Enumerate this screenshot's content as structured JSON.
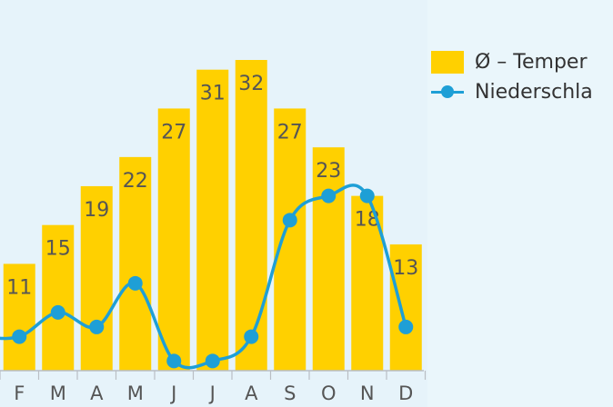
{
  "chart_data": {
    "type": "bar",
    "categories": [
      "F",
      "M",
      "A",
      "M",
      "J",
      "J",
      "A",
      "S",
      "O",
      "N",
      "D"
    ],
    "series": [
      {
        "name": "Ø – Temper",
        "type": "bar",
        "color": "#ffd000",
        "values": [
          11,
          15,
          19,
          22,
          27,
          31,
          32,
          27,
          23,
          18,
          13
        ]
      },
      {
        "name": "Niederschla",
        "type": "line",
        "color": "#1e9fd6",
        "values": [
          3.5,
          6,
          4.5,
          9,
          1,
          1,
          3.5,
          15.5,
          18,
          18,
          4.5
        ]
      }
    ],
    "partial_left_line_value": 3.5,
    "ylim": [
      0,
      35
    ],
    "legend_position": "right",
    "grid": false
  }
}
